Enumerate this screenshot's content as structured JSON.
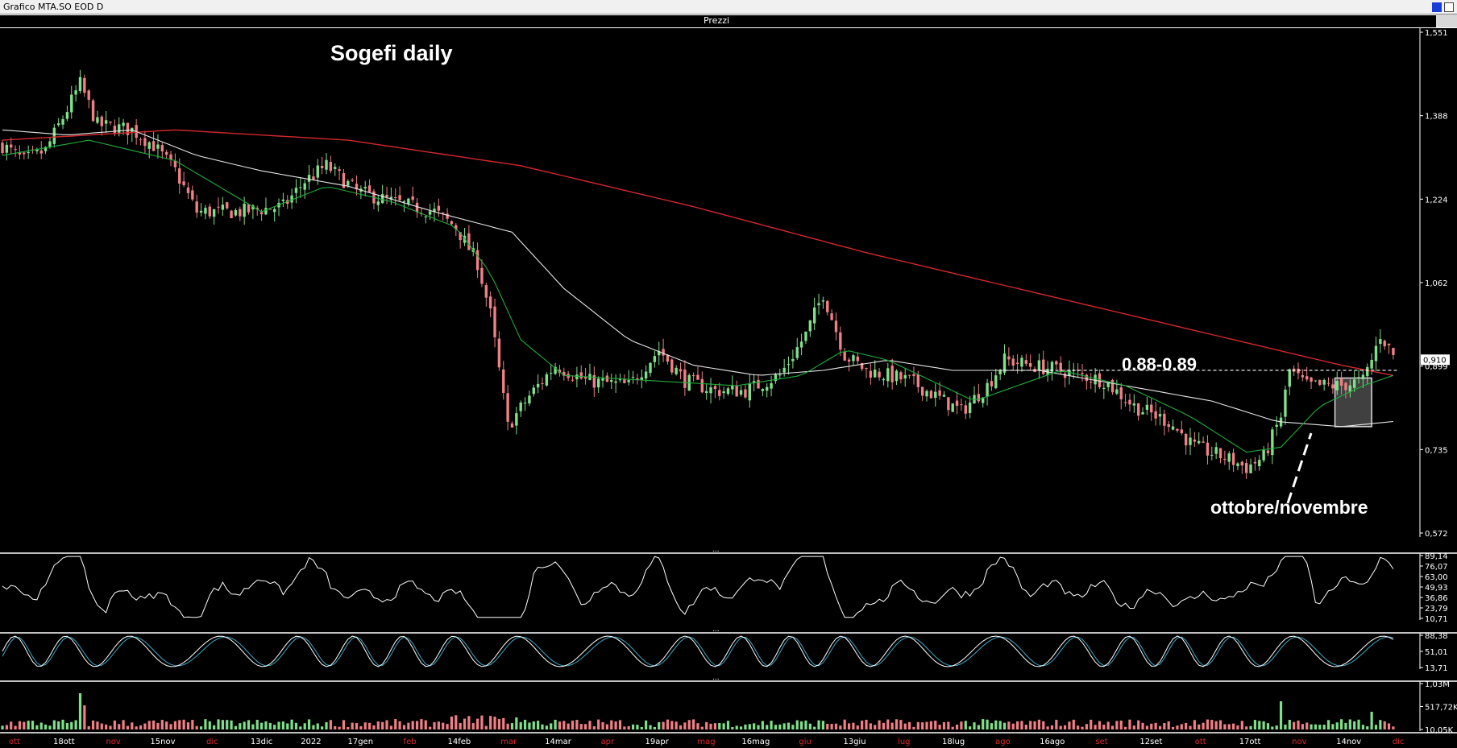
{
  "window": {
    "title": "Grafico MTA.SO EOD D"
  },
  "panes": {
    "price_label": "Prezzi",
    "divider_label": "..."
  },
  "annotations": {
    "title": "Sogefi daily",
    "resistance": "0.88-0.89",
    "box_note": "ottobre/novembre"
  },
  "axes": {
    "price_ticks": [
      "1,551",
      "1,388",
      "1,224",
      "1,062",
      "0,899",
      "0,735",
      "0,572"
    ],
    "last_price": "0,910",
    "rsi_ticks": [
      "89,14",
      "76,07",
      "63,00",
      "49,93",
      "36,86",
      "23,79",
      "10,71"
    ],
    "stoch_ticks": [
      "88,38",
      "51,01",
      "13,71"
    ],
    "volume_ticks": [
      "1,03M",
      "517,72K",
      "10,05K"
    ],
    "date_labels": [
      {
        "text": "ott",
        "month": true
      },
      {
        "text": "18ott",
        "month": false
      },
      {
        "text": "nov",
        "month": true
      },
      {
        "text": "15nov",
        "month": false
      },
      {
        "text": "dic",
        "month": true
      },
      {
        "text": "13dic",
        "month": false
      },
      {
        "text": "2022",
        "month": false
      },
      {
        "text": "17gen",
        "month": false
      },
      {
        "text": "feb",
        "month": true
      },
      {
        "text": "14feb",
        "month": false
      },
      {
        "text": "mar",
        "month": true
      },
      {
        "text": "14mar",
        "month": false
      },
      {
        "text": "apr",
        "month": true
      },
      {
        "text": "19apr",
        "month": false
      },
      {
        "text": "mag",
        "month": true
      },
      {
        "text": "16mag",
        "month": false
      },
      {
        "text": "giu",
        "month": true
      },
      {
        "text": "13giu",
        "month": false
      },
      {
        "text": "lug",
        "month": true
      },
      {
        "text": "18lug",
        "month": false
      },
      {
        "text": "ago",
        "month": true
      },
      {
        "text": "16ago",
        "month": false
      },
      {
        "text": "set",
        "month": true
      },
      {
        "text": "12set",
        "month": false
      },
      {
        "text": "ott",
        "month": true
      },
      {
        "text": "17ott",
        "month": false
      },
      {
        "text": "nov",
        "month": true
      },
      {
        "text": "14nov",
        "month": false
      },
      {
        "text": "dic",
        "month": true
      }
    ]
  },
  "colors": {
    "up": "#7fe08a",
    "down": "#f07f86",
    "ma_fast": "#1fae3b",
    "ma_mid": "#e6e6e6",
    "ma_slow": "#d4282c",
    "stoch_k": "#ffffff",
    "stoch_d": "#3aa6c6",
    "month_label": "#e0282c",
    "day_label": "#ffffff"
  },
  "chart_data": {
    "type": "candlestick",
    "ylim": [
      0.572,
      1.551
    ],
    "resistance_level": 0.89,
    "anchors": [
      [
        0,
        1.33
      ],
      [
        5,
        1.3
      ],
      [
        10,
        1.32
      ],
      [
        15,
        1.4
      ],
      [
        18,
        1.45
      ],
      [
        22,
        1.37
      ],
      [
        30,
        1.36
      ],
      [
        35,
        1.33
      ],
      [
        40,
        1.28
      ],
      [
        45,
        1.2
      ],
      [
        55,
        1.2
      ],
      [
        65,
        1.21
      ],
      [
        70,
        1.26
      ],
      [
        75,
        1.29
      ],
      [
        82,
        1.24
      ],
      [
        90,
        1.22
      ],
      [
        100,
        1.2
      ],
      [
        105,
        1.17
      ],
      [
        110,
        1.1
      ],
      [
        113,
        1.0
      ],
      [
        117,
        0.78
      ],
      [
        122,
        0.84
      ],
      [
        128,
        0.9
      ],
      [
        135,
        0.87
      ],
      [
        145,
        0.86
      ],
      [
        152,
        0.93
      ],
      [
        158,
        0.87
      ],
      [
        165,
        0.85
      ],
      [
        172,
        0.85
      ],
      [
        180,
        0.88
      ],
      [
        186,
        0.96
      ],
      [
        190,
        1.04
      ],
      [
        195,
        0.92
      ],
      [
        200,
        0.89
      ],
      [
        210,
        0.87
      ],
      [
        216,
        0.84
      ],
      [
        222,
        0.81
      ],
      [
        228,
        0.86
      ],
      [
        232,
        0.91
      ],
      [
        238,
        0.9
      ],
      [
        245,
        0.89
      ],
      [
        250,
        0.88
      ],
      [
        255,
        0.87
      ],
      [
        262,
        0.82
      ],
      [
        270,
        0.79
      ],
      [
        276,
        0.74
      ],
      [
        283,
        0.72
      ],
      [
        288,
        0.7
      ],
      [
        292,
        0.72
      ],
      [
        296,
        0.8
      ],
      [
        298,
        0.89
      ],
      [
        302,
        0.86
      ],
      [
        310,
        0.86
      ],
      [
        315,
        0.87
      ],
      [
        317,
        0.91
      ],
      [
        319,
        0.96
      ],
      [
        322,
        0.92
      ]
    ],
    "ma_fast": [
      [
        0,
        1.31
      ],
      [
        20,
        1.34
      ],
      [
        40,
        1.3
      ],
      [
        60,
        1.2
      ],
      [
        75,
        1.25
      ],
      [
        90,
        1.22
      ],
      [
        105,
        1.17
      ],
      [
        113,
        1.08
      ],
      [
        120,
        0.95
      ],
      [
        130,
        0.88
      ],
      [
        150,
        0.87
      ],
      [
        170,
        0.86
      ],
      [
        185,
        0.88
      ],
      [
        195,
        0.93
      ],
      [
        205,
        0.91
      ],
      [
        215,
        0.87
      ],
      [
        225,
        0.83
      ],
      [
        235,
        0.86
      ],
      [
        245,
        0.89
      ],
      [
        260,
        0.86
      ],
      [
        275,
        0.8
      ],
      [
        288,
        0.73
      ],
      [
        296,
        0.74
      ],
      [
        305,
        0.82
      ],
      [
        315,
        0.86
      ],
      [
        322,
        0.88
      ]
    ],
    "ma_mid": [
      [
        0,
        1.36
      ],
      [
        15,
        1.35
      ],
      [
        30,
        1.36
      ],
      [
        45,
        1.31
      ],
      [
        60,
        1.28
      ],
      [
        80,
        1.25
      ],
      [
        100,
        1.2
      ],
      [
        118,
        1.16
      ],
      [
        130,
        1.05
      ],
      [
        145,
        0.95
      ],
      [
        160,
        0.9
      ],
      [
        175,
        0.88
      ],
      [
        190,
        0.89
      ],
      [
        205,
        0.91
      ],
      [
        220,
        0.89
      ],
      [
        240,
        0.89
      ],
      [
        260,
        0.86
      ],
      [
        280,
        0.83
      ],
      [
        295,
        0.79
      ],
      [
        310,
        0.78
      ],
      [
        322,
        0.79
      ]
    ],
    "ma_slow": [
      [
        0,
        1.34
      ],
      [
        40,
        1.36
      ],
      [
        80,
        1.34
      ],
      [
        120,
        1.29
      ],
      [
        160,
        1.21
      ],
      [
        200,
        1.12
      ],
      [
        240,
        1.04
      ],
      [
        280,
        0.96
      ],
      [
        310,
        0.9
      ],
      [
        322,
        0.88
      ]
    ],
    "rsi_ylim": [
      10.71,
      89.14
    ],
    "stoch_ylim": [
      13.71,
      88.38
    ],
    "volume_ylim": [
      10050,
      1030000
    ]
  }
}
